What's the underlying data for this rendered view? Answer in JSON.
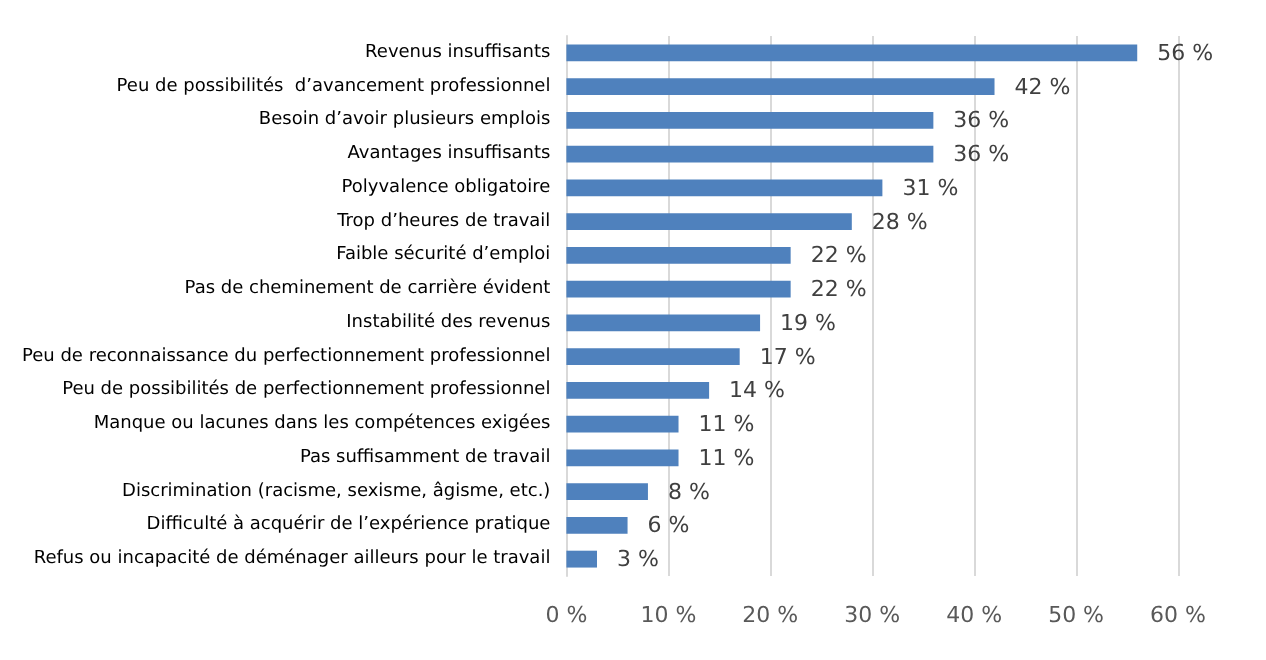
{
  "chart_data": {
    "type": "bar",
    "orientation": "horizontal",
    "categories": [
      "Revenus insuffisants",
      "Peu de possibilités  d’avancement professionnel",
      "Besoin d’avoir plusieurs emplois",
      "Avantages insuffisants",
      "Polyvalence obligatoire",
      "Trop d’heures de travail",
      "Faible sécurité d’emploi",
      "Pas de cheminement de carrière évident",
      "Instabilité des revenus",
      "Peu de reconnaissance du perfectionnement professionnel",
      "Peu de possibilités de perfectionnement professionnel",
      "Manque ou lacunes dans les compétences exigées",
      "Pas suffisamment de travail",
      "Discrimination (racisme, sexisme, âgisme, etc.)",
      "Difficulté à acquérir de l’expérience pratique",
      "Refus ou incapacité de déménager ailleurs pour le travail"
    ],
    "values": [
      56,
      42,
      36,
      36,
      31,
      28,
      22,
      22,
      19,
      17,
      14,
      11,
      11,
      8,
      6,
      3
    ],
    "value_labels": [
      "56 %",
      "42 %",
      "36 %",
      "36 %",
      "31 %",
      "28 %",
      "22 %",
      "22 %",
      "19 %",
      "17 %",
      "14 %",
      "11 %",
      "11 %",
      "8 %",
      "6 %",
      "3 %"
    ],
    "color": "#4f81bd",
    "xlim": [
      0,
      60
    ],
    "xticks": [
      {
        "value": 0,
        "label": "0 %"
      },
      {
        "value": 10,
        "label": "10 %"
      },
      {
        "value": 20,
        "label": "20 %"
      },
      {
        "value": 30,
        "label": "30 %"
      },
      {
        "value": 40,
        "label": "40 %"
      },
      {
        "value": 50,
        "label": "50 %"
      },
      {
        "value": 60,
        "label": "60 %"
      }
    ],
    "grid": "x"
  }
}
